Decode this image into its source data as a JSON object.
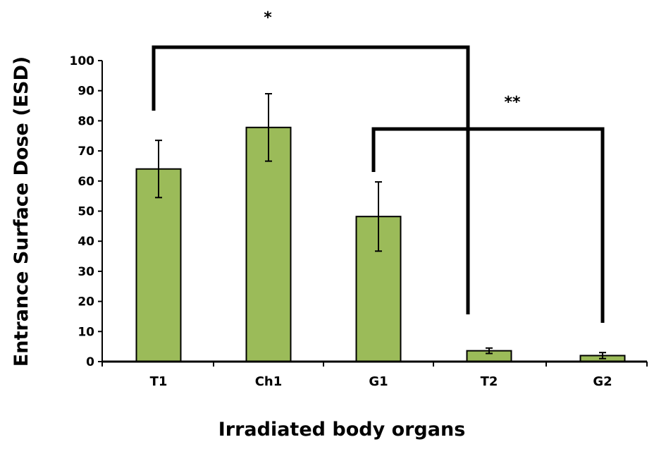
{
  "chart_data": {
    "type": "bar",
    "title": "",
    "xlabel": "Irradiated body organs",
    "ylabel": "Entrance Surface Dose (ESD)",
    "ylim": [
      0,
      100
    ],
    "yticks": [
      0,
      10,
      20,
      30,
      40,
      50,
      60,
      70,
      80,
      90,
      100
    ],
    "grid": false,
    "legend": "none",
    "bar_color": "#9bbb59",
    "bar_edge_color": "#000000",
    "categories": [
      "T1",
      "Ch1",
      "G1",
      "T2",
      "G2"
    ],
    "values": [
      64,
      77.8,
      48.2,
      3.6,
      2
    ],
    "error": [
      9.5,
      11.2,
      11.5,
      0.9,
      1
    ],
    "significance": [
      {
        "label": "*",
        "from": "T1",
        "to": "T2"
      },
      {
        "label": "**",
        "from": "G1",
        "to": "G2"
      }
    ]
  }
}
